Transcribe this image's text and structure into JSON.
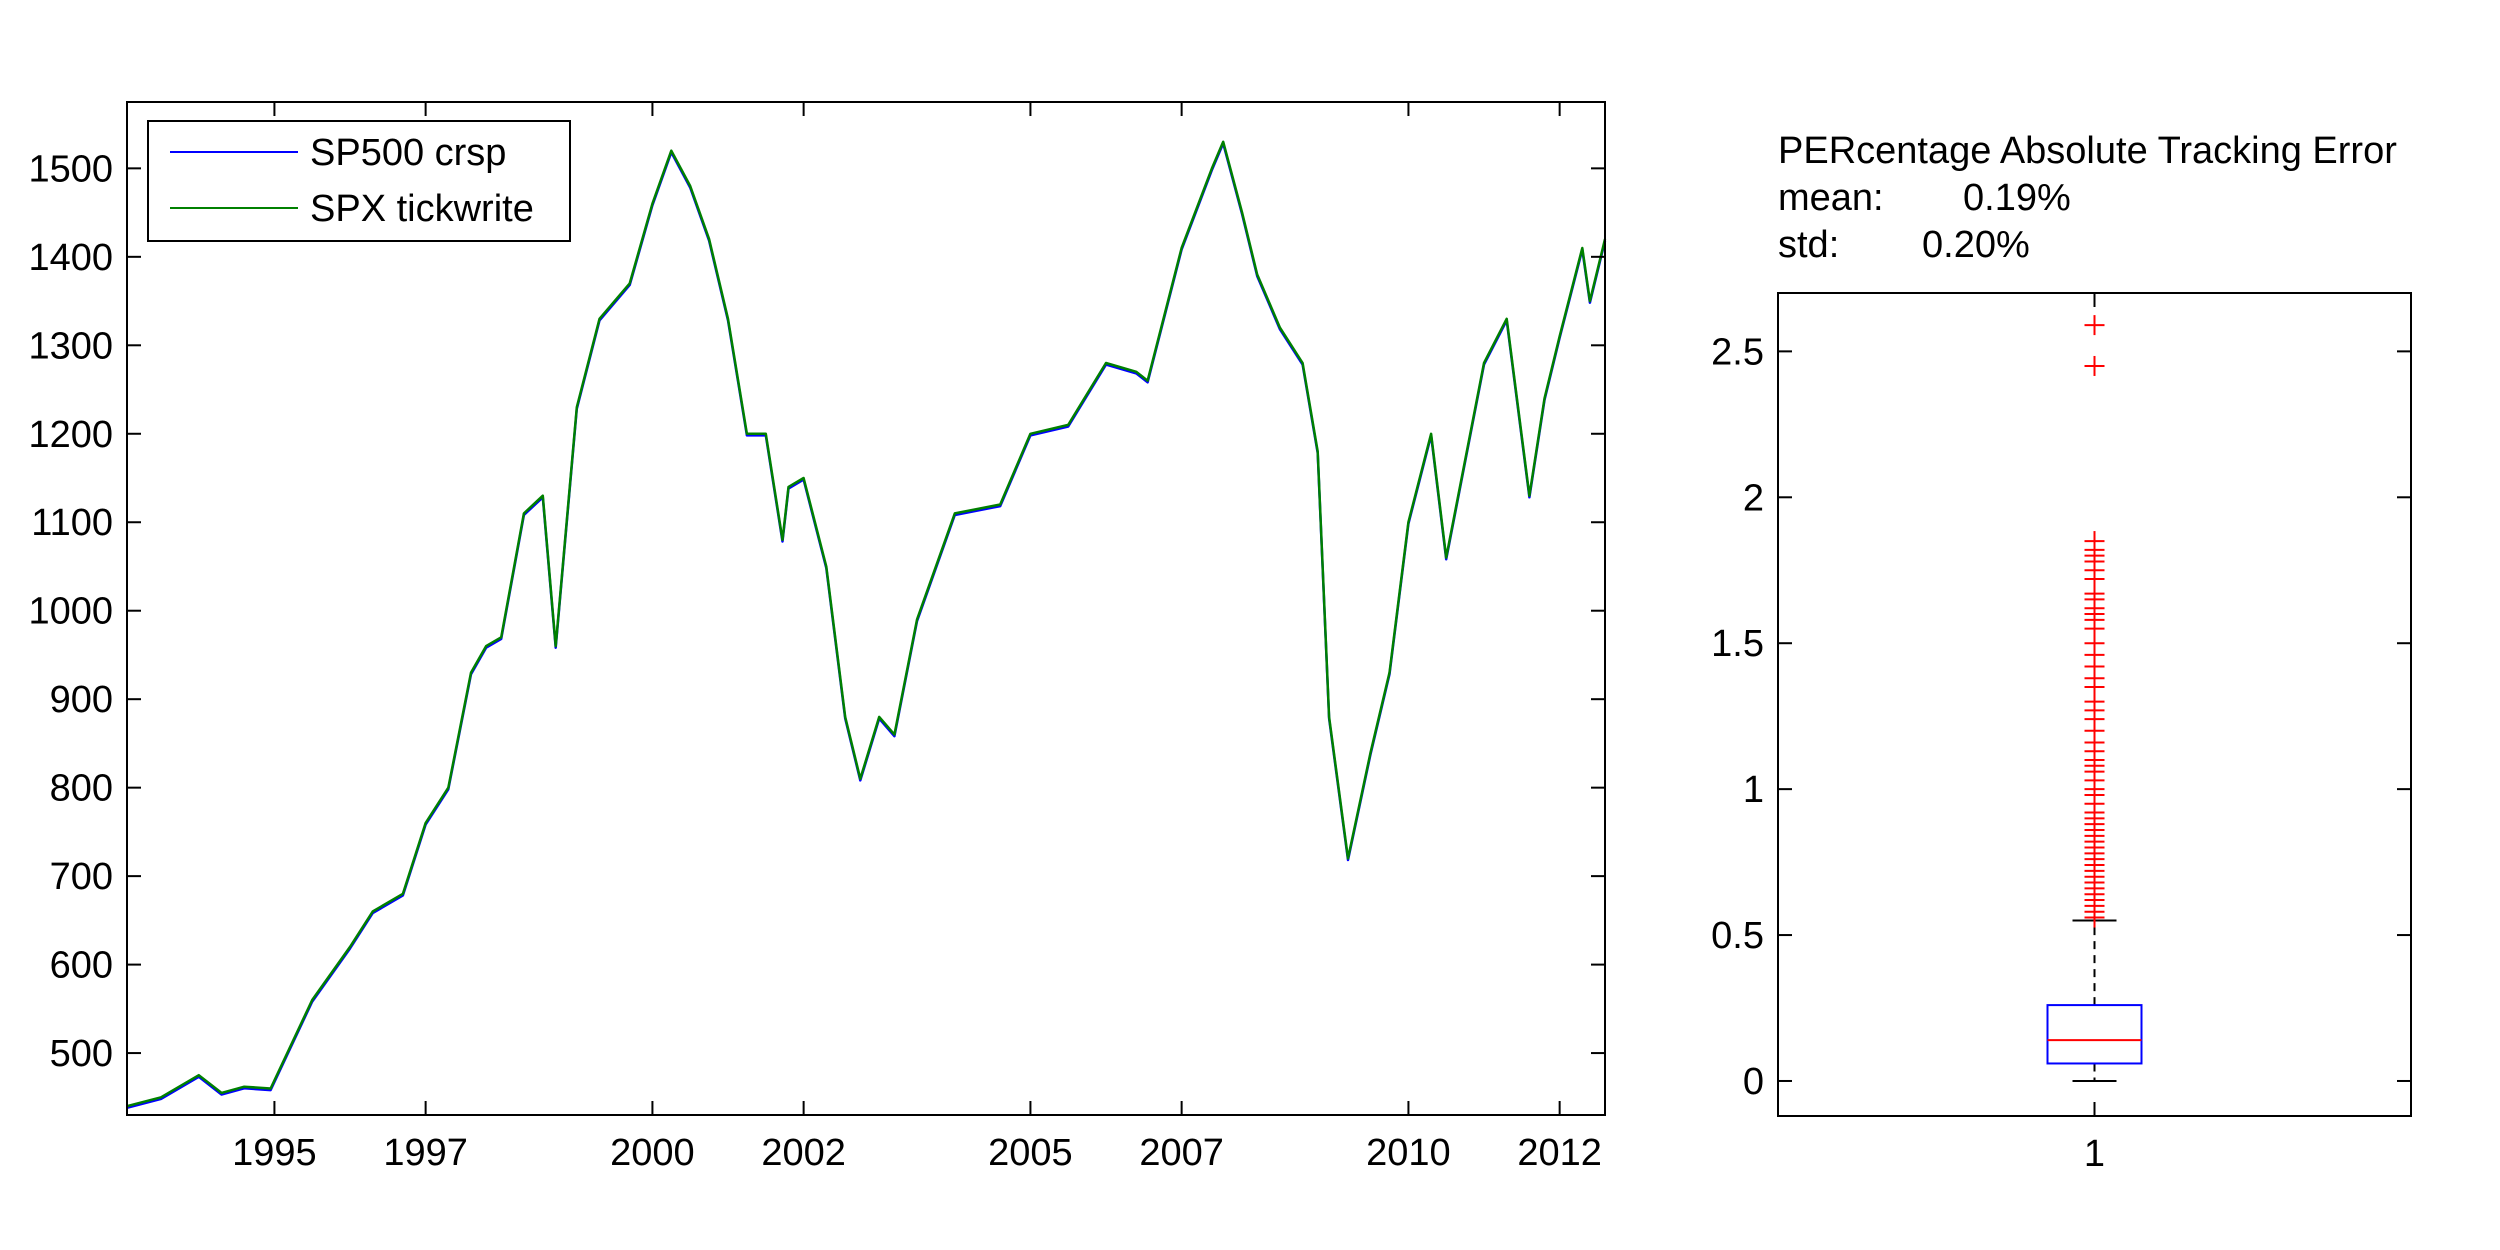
{
  "chart_data": [
    {
      "type": "line",
      "xlim": [
        1993.05,
        2012.6
      ],
      "ylim": [
        430,
        1575
      ],
      "xticks": [
        1995,
        1997,
        2000,
        2002,
        2005,
        2007,
        2010,
        2012
      ],
      "xtick_labels": [
        "1995",
        "1997",
        "2000",
        "2002",
        "2005",
        "2007",
        "2010",
        "2012"
      ],
      "yticks": [
        500,
        600,
        700,
        800,
        900,
        1000,
        1100,
        1200,
        1300,
        1400,
        1500
      ],
      "ytick_labels": [
        "500",
        "600",
        "700",
        "800",
        "900",
        "1000",
        "1100",
        "1200",
        "1300",
        "1400",
        "1500"
      ],
      "legend": {
        "position": "top-left"
      },
      "grid": false,
      "series": [
        {
          "name": "SP500 crsp",
          "color": "#0000ff"
        },
        {
          "name": "SPX tickwrite",
          "color": "#008000"
        }
      ],
      "x": [
        1993.05,
        1993.5,
        1994.0,
        1994.3,
        1994.6,
        1994.95,
        1995.5,
        1996.0,
        1996.3,
        1996.7,
        1997.0,
        1997.3,
        1997.6,
        1997.8,
        1998.0,
        1998.3,
        1998.55,
        1998.72,
        1999.0,
        1999.3,
        1999.7,
        2000.0,
        2000.25,
        2000.5,
        2000.75,
        2001.0,
        2001.25,
        2001.5,
        2001.72,
        2001.8,
        2002.0,
        2002.3,
        2002.55,
        2002.75,
        2003.0,
        2003.2,
        2003.5,
        2004.0,
        2004.6,
        2005.0,
        2005.5,
        2006.0,
        2006.4,
        2006.55,
        2007.0,
        2007.4,
        2007.55,
        2007.8,
        2008.0,
        2008.3,
        2008.6,
        2008.8,
        2008.95,
        2009.2,
        2009.5,
        2009.75,
        2010.0,
        2010.3,
        2010.5,
        2011.0,
        2011.3,
        2011.6,
        2011.8,
        2012.0,
        2012.3,
        2012.4,
        2012.6
      ],
      "y": [
        440,
        450,
        475,
        455,
        462,
        460,
        560,
        620,
        660,
        680,
        760,
        800,
        930,
        960,
        970,
        1110,
        1130,
        960,
        1230,
        1330,
        1370,
        1460,
        1520,
        1480,
        1420,
        1330,
        1200,
        1200,
        1080,
        1140,
        1150,
        1050,
        880,
        810,
        880,
        860,
        990,
        1110,
        1120,
        1200,
        1210,
        1280,
        1270,
        1260,
        1410,
        1500,
        1530,
        1450,
        1380,
        1320,
        1280,
        1180,
        880,
        720,
        840,
        930,
        1100,
        1200,
        1060,
        1280,
        1330,
        1130,
        1240,
        1310,
        1410,
        1350,
        1420
      ]
    },
    {
      "type": "box",
      "title": "PERcentage Absolute Tracking Error",
      "stats": [
        {
          "label": "mean:",
          "value": "0.19%"
        },
        {
          "label": "std:",
          "value": "0.20%"
        }
      ],
      "xtick_labels": [
        "1"
      ],
      "ylim": [
        -0.12,
        2.7
      ],
      "yticks": [
        0,
        0.5,
        1,
        1.5,
        2,
        2.5
      ],
      "ytick_labels": [
        "0",
        "0.5",
        "1",
        "1.5",
        "2",
        "2.5"
      ],
      "box": {
        "q1": 0.06,
        "median": 0.14,
        "q3": 0.26,
        "whisker_low": 0.0,
        "whisker_high": 0.55
      },
      "colors": {
        "box": "#0000ff",
        "median": "#ff0000",
        "outlier": "#ff0000",
        "whisker": "#000000"
      },
      "outliers": [
        0.56,
        0.58,
        0.6,
        0.62,
        0.64,
        0.66,
        0.68,
        0.7,
        0.72,
        0.74,
        0.76,
        0.78,
        0.8,
        0.82,
        0.84,
        0.86,
        0.88,
        0.9,
        0.92,
        0.95,
        0.98,
        1.0,
        1.03,
        1.06,
        1.08,
        1.1,
        1.13,
        1.16,
        1.2,
        1.24,
        1.27,
        1.3,
        1.35,
        1.38,
        1.42,
        1.46,
        1.5,
        1.55,
        1.58,
        1.6,
        1.62,
        1.65,
        1.67,
        1.72,
        1.75,
        1.78,
        1.8,
        1.82,
        1.85,
        2.45,
        2.59
      ]
    }
  ]
}
